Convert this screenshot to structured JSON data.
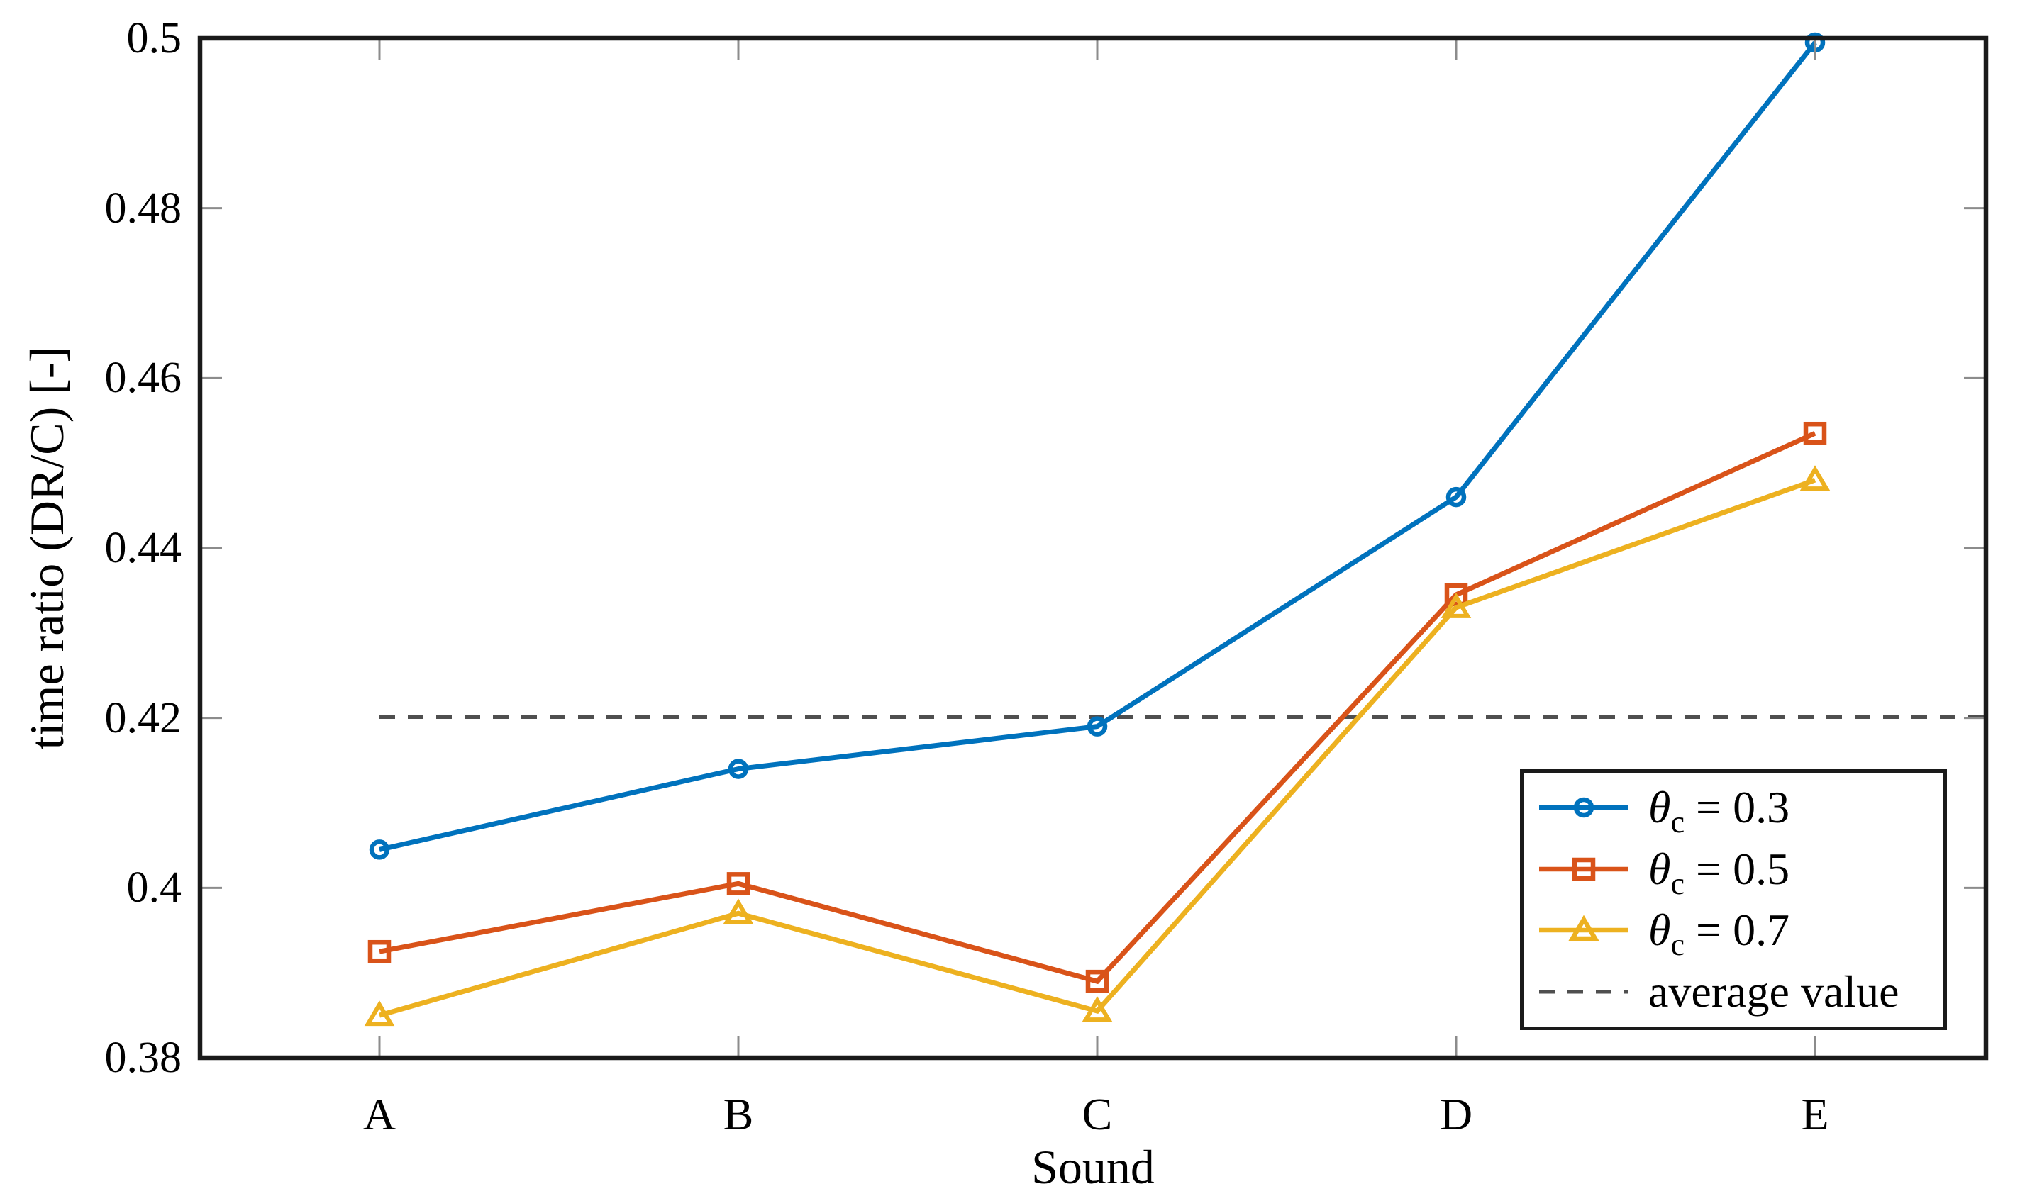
{
  "chart_data": {
    "type": "line",
    "title": "",
    "xlabel": "Sound",
    "ylabel": "time ratio (DR/C) [-]",
    "categories": [
      "A",
      "B",
      "C",
      "D",
      "E"
    ],
    "ylim": [
      0.38,
      0.5
    ],
    "grid": false,
    "legend_position": "lower right",
    "y_ticks": [
      {
        "label": "0.5",
        "value": 0.5
      },
      {
        "label": "0.48",
        "value": 0.48
      },
      {
        "label": "0.46",
        "value": 0.46
      },
      {
        "label": "0.44",
        "value": 0.44
      },
      {
        "label": "0.42",
        "value": 0.42
      },
      {
        "label": "0.4",
        "value": 0.4
      },
      {
        "label": "0.38",
        "value": 0.38
      }
    ],
    "series": [
      {
        "name": "θc = 0.3",
        "marker": "circle",
        "color": "#0072BD",
        "values": [
          0.4045,
          0.414,
          0.419,
          0.446,
          0.4995
        ]
      },
      {
        "name": "θc = 0.5",
        "marker": "square",
        "color": "#D95319",
        "values": [
          0.3925,
          0.4005,
          0.389,
          0.4345,
          0.4535
        ]
      },
      {
        "name": "θc = 0.7",
        "marker": "triangle",
        "color": "#EDB120",
        "values": [
          0.385,
          0.397,
          0.3855,
          0.433,
          0.448
        ]
      }
    ],
    "reference_line": {
      "label": "average value",
      "value": 0.4201,
      "style": "dashed",
      "color": "#4F4F4F"
    }
  },
  "legend": {
    "entries": [
      {
        "theta": "θ",
        "sub": "c",
        "rest": "= 0.3"
      },
      {
        "theta": "θ",
        "sub": "c",
        "rest": "= 0.5"
      },
      {
        "theta": "θ",
        "sub": "c",
        "rest": "= 0.7"
      },
      {
        "label": "average value"
      }
    ]
  },
  "style": {
    "background": "#FFFFFF",
    "frame_color": "#1A1A1A",
    "tick_color": "#8C8C8C",
    "text_color": "#000000"
  }
}
